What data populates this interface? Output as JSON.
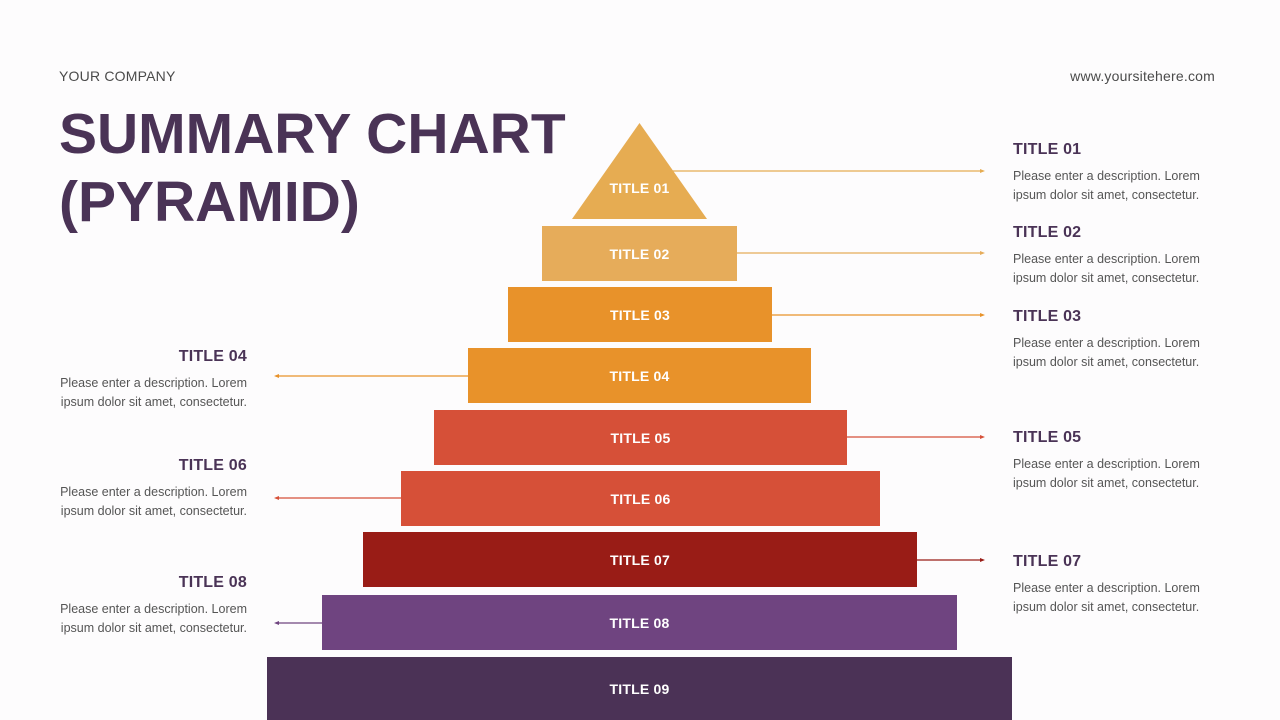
{
  "header": {
    "company": "YOUR COMPANY",
    "site": "www.yoursitehere.com"
  },
  "heading": {
    "line1": "SUMMARY CHART",
    "line2": "(PYRAMID)"
  },
  "pyramid": {
    "levels": [
      {
        "label": "TITLE 01",
        "color": "#e6ac52"
      },
      {
        "label": "TITLE 02",
        "color": "#e6ac5a"
      },
      {
        "label": "TITLE 03",
        "color": "#e8922a"
      },
      {
        "label": "TITLE 04",
        "color": "#e8922a"
      },
      {
        "label": "TITLE 05",
        "color": "#d65038"
      },
      {
        "label": "TITLE 06",
        "color": "#d65038"
      },
      {
        "label": "TITLE 07",
        "color": "#991c16"
      },
      {
        "label": "TITLE 08",
        "color": "#6f4480"
      },
      {
        "label": "TITLE 09",
        "color": "#4b3256"
      }
    ]
  },
  "descriptions": [
    {
      "title": "TITLE 01",
      "text": "Please enter a description. Lorem ipsum dolor sit amet, consectetur."
    },
    {
      "title": "TITLE 02",
      "text": "Please enter a description. Lorem ipsum dolor sit amet, consectetur."
    },
    {
      "title": "TITLE 03",
      "text": "Please enter a description. Lorem ipsum dolor sit amet, consectetur."
    },
    {
      "title": "TITLE 04",
      "text": "Please enter a description. Lorem ipsum dolor sit amet, consectetur."
    },
    {
      "title": "TITLE 05",
      "text": "Please enter a description. Lorem ipsum dolor sit amet, consectetur."
    },
    {
      "title": "TITLE 06",
      "text": "Please enter a description. Lorem ipsum dolor sit amet, consectetur."
    },
    {
      "title": "TITLE 07",
      "text": "Please enter a description. Lorem ipsum dolor sit amet, consectetur."
    },
    {
      "title": "TITLE 08",
      "text": "Please enter a description. Lorem ipsum dolor sit amet, consectetur."
    }
  ]
}
